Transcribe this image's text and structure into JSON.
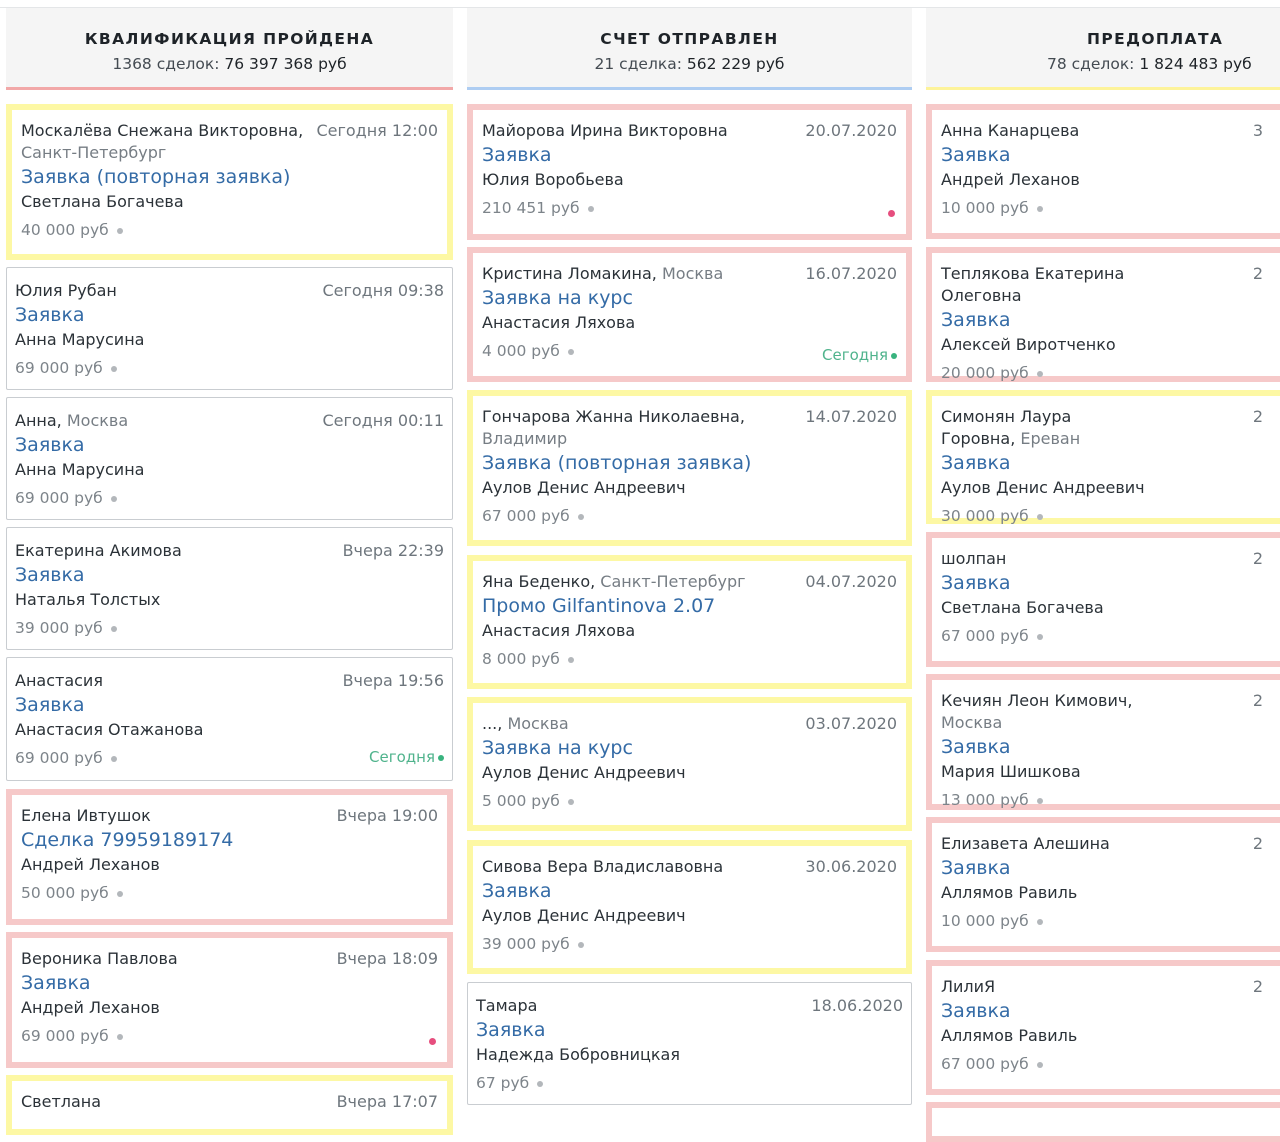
{
  "colors": {
    "yellow_border": "#fdf8a4",
    "pink_border": "#f6c9c9",
    "link_blue": "#346ba6",
    "today_green": "#4fb38c",
    "pink_dot": "#e64e7e"
  },
  "columns": [
    {
      "title": "КВАЛИФИКАЦИЯ ПРОЙДЕНА",
      "count_label": "1368 сделок:",
      "sum": "76 397 368 руб",
      "line_color": "#f2a8a8",
      "cards": [
        {
          "name": "Москалёва Снежана Викторовна,",
          "city": "Санкт-Петербург",
          "date": "Сегодня 12:00",
          "deal": "Заявка (повторная заявка)",
          "person": "Светлана Богачева",
          "price": "40 000 руб",
          "status": ""
        },
        {
          "name": "Юлия Рубан",
          "city": "",
          "date": "Сегодня 09:38",
          "deal": "Заявка",
          "person": "Анна Марусина",
          "price": "69 000 руб",
          "status": ""
        },
        {
          "name": "Анна,",
          "city": "Москва",
          "date": "Сегодня 00:11",
          "deal": "Заявка",
          "person": "Анна Марусина",
          "price": "69 000 руб",
          "status": ""
        },
        {
          "name": "Екатерина Акимова",
          "city": "",
          "date": "Вчера 22:39",
          "deal": "Заявка",
          "person": "Наталья Толстых",
          "price": "39 000 руб",
          "status": ""
        },
        {
          "name": "Анастасия",
          "city": "",
          "date": "Вчера 19:56",
          "deal": "Заявка",
          "person": "Анастасия Отажанова",
          "price": "69 000 руб",
          "status": "Сегодня"
        },
        {
          "name": "Елена Ивтушок",
          "city": "",
          "date": "Вчера 19:00",
          "deal": "Сделка 79959189174",
          "person": "Андрей Леханов",
          "price": "50 000 руб",
          "status": ""
        },
        {
          "name": "Вероника Павлова",
          "city": "",
          "date": "Вчера 18:09",
          "deal": "Заявка",
          "person": "Андрей Леханов",
          "price": "69 000 руб",
          "status": ""
        },
        {
          "name": "Светлана",
          "city": "",
          "date": "Вчера 17:07",
          "deal": "",
          "person": "",
          "price": "",
          "status": ""
        }
      ]
    },
    {
      "title": "СЧЕТ ОТПРАВЛЕН",
      "count_label": "21 сделка:",
      "sum": "562 229 руб",
      "line_color": "#aecdf2",
      "cards": [
        {
          "name": "Майорова Ирина Викторовна",
          "city": "",
          "date": "20.07.2020",
          "deal": "Заявка",
          "person": "Юлия Воробьева",
          "price": "210 451 руб",
          "status": ""
        },
        {
          "name": "Кристина Ломакина,",
          "city": "Москва",
          "date": "16.07.2020",
          "deal": "Заявка на курс",
          "person": "Анастасия Ляхова",
          "price": "4 000 руб",
          "status": "Сегодня"
        },
        {
          "name": "Гончарова Жанна Николаевна,",
          "city": "Владимир",
          "date": "14.07.2020",
          "deal": "Заявка (повторная заявка)",
          "person": "Аулов Денис Андреевич",
          "price": "67 000 руб",
          "status": ""
        },
        {
          "name": "Яна Беденко,",
          "city": "Санкт-Петербург",
          "date": "04.07.2020",
          "deal": "Промо Gilfantinova 2.07",
          "person": "Анастасия Ляхова",
          "price": "8 000 руб",
          "status": ""
        },
        {
          "name": "...,",
          "city": "Москва",
          "date": "03.07.2020",
          "deal": "Заявка на курс",
          "person": "Аулов Денис Андреевич",
          "price": "5 000 руб",
          "status": ""
        },
        {
          "name": "Сивова Вера Владиславовна",
          "city": "",
          "date": "30.06.2020",
          "deal": "Заявка",
          "person": "Аулов Денис Андреевич",
          "price": "39 000 руб",
          "status": ""
        },
        {
          "name": "Тамара",
          "city": "",
          "date": "18.06.2020",
          "deal": "Заявка",
          "person": "Надежда Бобровницкая",
          "price": "67 руб",
          "status": ""
        }
      ]
    },
    {
      "title": "ПРЕДОПЛАТА",
      "count_label": "78 сделок:",
      "sum": "1 824 483 руб",
      "line_color": "#fdf39a",
      "cards": [
        {
          "name": "Анна Канарцева",
          "city": "",
          "date": "3",
          "deal": "Заявка",
          "person": "Андрей Леханов",
          "price": "10 000 руб",
          "status": ""
        },
        {
          "name": "Теплякова Екатерина Олеговна",
          "city": "",
          "date": "2",
          "deal": "Заявка",
          "person": "Алексей Виротченко",
          "price": "20 000 руб",
          "status": ""
        },
        {
          "name": "Симонян Лаура Горовна,",
          "city": "Ереван",
          "date": "2",
          "deal": "Заявка",
          "person": "Аулов Денис Андреевич",
          "price": "30 000 руб",
          "status": ""
        },
        {
          "name": "шолпан",
          "city": "",
          "date": "2",
          "deal": "Заявка",
          "person": "Светлана Богачева",
          "price": "67 000 руб",
          "status": ""
        },
        {
          "name": "Кечиян Леон Кимович,",
          "city": "Москва",
          "date": "2",
          "deal": "Заявка",
          "person": "Мария Шишкова",
          "price": "13 000 руб",
          "status": ""
        },
        {
          "name": "Елизавета Алешина",
          "city": "",
          "date": "2",
          "deal": "Заявка",
          "person": "Аллямов Равиль",
          "price": "10 000 руб",
          "status": ""
        },
        {
          "name": "ЛилиЯ",
          "city": "",
          "date": "2",
          "deal": "Заявка",
          "person": "Аллямов Равиль",
          "price": "67 000 руб",
          "status": ""
        }
      ]
    }
  ]
}
